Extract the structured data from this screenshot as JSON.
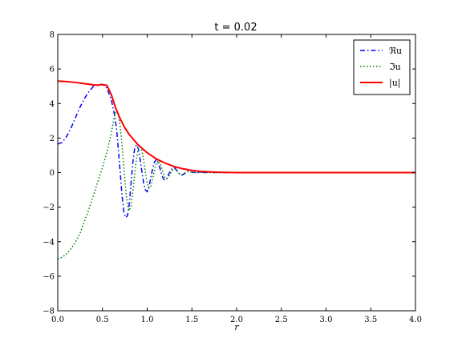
{
  "chart_data": {
    "type": "line",
    "title": "t = 0.02",
    "xlabel": "r",
    "ylabel": "",
    "xlim": [
      0.0,
      4.0
    ],
    "ylim": [
      -8,
      8
    ],
    "xticks": [
      0.0,
      0.5,
      1.0,
      1.5,
      2.0,
      2.5,
      3.0,
      3.5,
      4.0
    ],
    "xtick_labels": [
      "0.0",
      "0.5",
      "1.0",
      "1.5",
      "2.0",
      "2.5",
      "3.0",
      "3.5",
      "4.0"
    ],
    "yticks": [
      -8,
      -6,
      -4,
      -2,
      0,
      2,
      4,
      6,
      8
    ],
    "ytick_labels": [
      "−8",
      "−6",
      "−4",
      "−2",
      "0",
      "2",
      "4",
      "6",
      "8"
    ],
    "grid": false,
    "legend_position": "top-right",
    "series": [
      {
        "name": "ℜu",
        "color": "#0000ff",
        "dash": "dashdot",
        "x": [
          0.0,
          0.05,
          0.1,
          0.15,
          0.2,
          0.25,
          0.3,
          0.35,
          0.4,
          0.45,
          0.5,
          0.55,
          0.6,
          0.64,
          0.66,
          0.68,
          0.7,
          0.72,
          0.74,
          0.76,
          0.78,
          0.8,
          0.82,
          0.84,
          0.86,
          0.88,
          0.9,
          0.92,
          0.94,
          0.96,
          0.98,
          1.0,
          1.02,
          1.04,
          1.06,
          1.08,
          1.1,
          1.12,
          1.14,
          1.16,
          1.18,
          1.2,
          1.22,
          1.24,
          1.26,
          1.28,
          1.3,
          1.32,
          1.34,
          1.36,
          1.38,
          1.4,
          1.42,
          1.44,
          1.46,
          1.48,
          1.5,
          1.55,
          1.6,
          1.65,
          1.7,
          1.8,
          2.0,
          2.5,
          3.0,
          3.5,
          4.0
        ],
        "y": [
          1.65,
          1.75,
          2.1,
          2.6,
          3.2,
          3.8,
          4.3,
          4.7,
          5.0,
          5.1,
          5.1,
          4.9,
          4.2,
          3.2,
          2.4,
          1.2,
          -0.1,
          -1.4,
          -2.3,
          -2.6,
          -2.5,
          -1.8,
          -0.6,
          0.6,
          1.4,
          1.6,
          1.4,
          0.8,
          0.1,
          -0.6,
          -1.0,
          -1.1,
          -0.8,
          -0.3,
          0.2,
          0.6,
          0.75,
          0.6,
          0.3,
          -0.05,
          -0.35,
          -0.45,
          -0.35,
          -0.1,
          0.1,
          0.25,
          0.3,
          0.2,
          0.05,
          -0.08,
          -0.15,
          -0.12,
          -0.04,
          0.04,
          0.08,
          0.06,
          0.02,
          0.0,
          0.02,
          0.0,
          0.01,
          0.0,
          0.0,
          0.0,
          0.0,
          0.0,
          0.0
        ]
      },
      {
        "name": "ℑu",
        "color": "#008000",
        "dash": "dotted",
        "x": [
          0.0,
          0.05,
          0.1,
          0.15,
          0.2,
          0.25,
          0.3,
          0.35,
          0.4,
          0.45,
          0.5,
          0.55,
          0.6,
          0.62,
          0.64,
          0.66,
          0.68,
          0.7,
          0.72,
          0.74,
          0.76,
          0.78,
          0.8,
          0.82,
          0.84,
          0.86,
          0.88,
          0.9,
          0.92,
          0.94,
          0.96,
          0.98,
          1.0,
          1.02,
          1.04,
          1.06,
          1.08,
          1.1,
          1.12,
          1.14,
          1.16,
          1.18,
          1.2,
          1.22,
          1.24,
          1.26,
          1.28,
          1.3,
          1.32,
          1.34,
          1.36,
          1.38,
          1.4,
          1.42,
          1.44,
          1.46,
          1.5,
          1.55,
          1.6,
          1.7,
          1.8,
          2.0,
          2.5,
          3.0,
          3.5,
          4.0
        ],
        "y": [
          -5.0,
          -4.9,
          -4.7,
          -4.4,
          -4.0,
          -3.5,
          -2.8,
          -2.1,
          -1.3,
          -0.5,
          0.3,
          1.2,
          2.3,
          2.9,
          3.4,
          3.6,
          3.3,
          2.6,
          1.5,
          0.2,
          -1.0,
          -1.9,
          -2.2,
          -1.9,
          -1.1,
          -0.1,
          0.8,
          1.4,
          1.6,
          1.3,
          0.7,
          0.0,
          -0.6,
          -0.9,
          -0.8,
          -0.4,
          0.1,
          0.5,
          0.7,
          0.6,
          0.3,
          -0.05,
          -0.3,
          -0.35,
          -0.25,
          -0.05,
          0.12,
          0.22,
          0.2,
          0.08,
          -0.05,
          -0.12,
          -0.1,
          -0.03,
          0.04,
          0.06,
          0.03,
          0.0,
          0.01,
          0.0,
          0.0,
          0.0,
          0.0,
          0.0,
          0.0,
          0.0
        ]
      },
      {
        "name": "|u|",
        "color": "#ff0000",
        "dash": "solid",
        "x": [
          0.0,
          0.1,
          0.2,
          0.3,
          0.4,
          0.45,
          0.5,
          0.55,
          0.6,
          0.65,
          0.7,
          0.75,
          0.8,
          0.9,
          1.0,
          1.1,
          1.2,
          1.3,
          1.4,
          1.5,
          1.6,
          1.7,
          1.8,
          1.9,
          2.0,
          2.5,
          3.0,
          3.5,
          4.0
        ],
        "y": [
          5.3,
          5.27,
          5.22,
          5.15,
          5.08,
          5.06,
          5.1,
          5.05,
          4.5,
          3.7,
          3.1,
          2.6,
          2.2,
          1.6,
          1.15,
          0.8,
          0.55,
          0.35,
          0.22,
          0.13,
          0.07,
          0.04,
          0.02,
          0.01,
          0.0,
          0.0,
          0.0,
          0.0,
          0.0
        ]
      }
    ]
  }
}
